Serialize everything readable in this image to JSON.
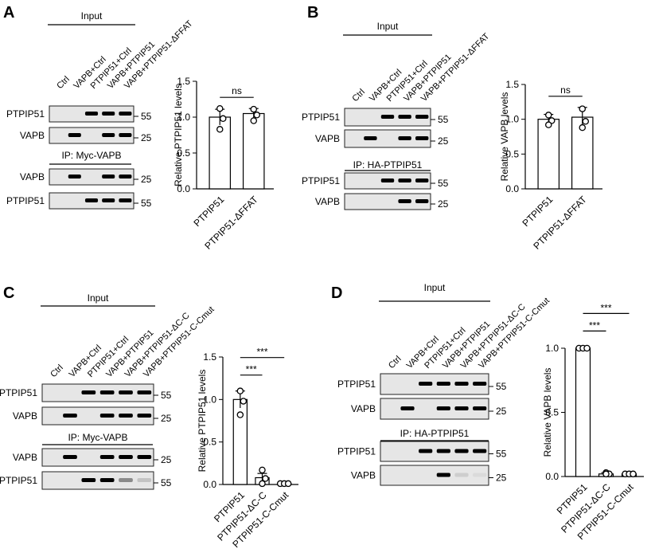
{
  "panels": [
    {
      "label": "A",
      "blot": {
        "input_label": "Input",
        "lanes": [
          "Ctrl",
          "VAPB+Ctrl",
          "PTPIP51+Ctrl",
          "VAPB+PTPIP51",
          "VAPB+PTPIP51-ΔFFAT"
        ],
        "ip_label": "IP: Myc-VAPB",
        "input_rows": [
          {
            "label": "PTPIP51",
            "mw": "55"
          },
          {
            "label": "VAPB",
            "mw": "25"
          }
        ],
        "ip_rows": [
          {
            "label": "VAPB",
            "mw": "25"
          },
          {
            "label": "PTPIP51",
            "mw": "55"
          }
        ]
      },
      "chart_data": {
        "type": "bar",
        "categories": [
          "PTPIP51",
          "PTPIP51-ΔFFAT"
        ],
        "values": [
          1.0,
          1.05
        ],
        "errors": [
          0.11,
          0.07
        ],
        "points": [
          [
            1.12,
            0.98,
            0.83
          ],
          [
            1.11,
            1.03,
            0.95
          ]
        ],
        "ylabel": "Relative PTPIP51 levels",
        "ylim": [
          0,
          1.5
        ],
        "yticks": [
          "0.0",
          "0.5",
          "1.0",
          "1.5"
        ],
        "significance": [
          "ns"
        ]
      }
    },
    {
      "label": "B",
      "blot": {
        "input_label": "Input",
        "lanes": [
          "Ctrl",
          "VAPB+Ctrl",
          "PTPIP51+Ctrl",
          "VAPB+PTPIP51",
          "VAPB+PTPIP51-ΔFFAT"
        ],
        "ip_label": "IP: HA-PTPIP51",
        "input_rows": [
          {
            "label": "PTPIP51",
            "mw": "55"
          },
          {
            "label": "VAPB",
            "mw": "25"
          }
        ],
        "ip_rows": [
          {
            "label": "PTPIP51",
            "mw": "55"
          },
          {
            "label": "VAPB",
            "mw": "25"
          }
        ]
      },
      "chart_data": {
        "type": "bar",
        "categories": [
          "PTPIP51",
          "PTPIP51-ΔFFAT"
        ],
        "values": [
          1.0,
          1.03
        ],
        "errors": [
          0.07,
          0.14
        ],
        "points": [
          [
            1.06,
            0.98,
            0.92
          ],
          [
            1.15,
            0.97,
            0.88
          ]
        ],
        "ylabel": "Relative VAPB levels",
        "ylim": [
          0,
          1.5
        ],
        "yticks": [
          "0.0",
          "0.5",
          "1.0",
          "1.5"
        ],
        "significance": [
          "ns"
        ]
      }
    },
    {
      "label": "C",
      "blot": {
        "input_label": "Input",
        "lanes": [
          "Ctrl",
          "VAPB+Ctrl",
          "PTPIP51+Ctrl",
          "VAPB+PTPIP51",
          "VAPB+PTPIP51-ΔC-C",
          "VAPB+PTPIP51-C-Cmut"
        ],
        "ip_label": "IP: Myc-VAPB",
        "input_rows": [
          {
            "label": "PTPIP51",
            "mw": "55"
          },
          {
            "label": "VAPB",
            "mw": "25"
          }
        ],
        "ip_rows": [
          {
            "label": "VAPB",
            "mw": "25"
          },
          {
            "label": "PTPIP51",
            "mw": "55"
          }
        ]
      },
      "chart_data": {
        "type": "bar",
        "categories": [
          "PTPIP51",
          "PTPIP51-ΔC-C",
          "PTPIP51-C-Cmut"
        ],
        "values": [
          1.0,
          0.08,
          0.01
        ],
        "errors": [
          0.1,
          0.05,
          0.005
        ],
        "points": [
          [
            1.1,
            0.98,
            0.82
          ],
          [
            0.17,
            0.07,
            0.01
          ],
          [
            0.01,
            0.01,
            0.01
          ]
        ],
        "ylabel": "Relative PTPIP51 levels",
        "ylim": [
          0,
          1.5
        ],
        "yticks": [
          "0.0",
          "0.5",
          "1.0",
          "1.5"
        ],
        "significance": [
          "***",
          "***"
        ]
      }
    },
    {
      "label": "D",
      "blot": {
        "input_label": "Input",
        "lanes": [
          "Ctrl",
          "VAPB+Ctrl",
          "PTPIP51+Ctrl",
          "VAPB+PTPIP51",
          "VAPB+PTPIP51-ΔC-C",
          "VAPB+PTPIP51-C-Cmut"
        ],
        "ip_label": "IP: HA-PTPIP51",
        "input_rows": [
          {
            "label": "PTPIP51",
            "mw": "55"
          },
          {
            "label": "VAPB",
            "mw": "25"
          }
        ],
        "ip_rows": [
          {
            "label": "PTPIP51",
            "mw": "55"
          },
          {
            "label": "VAPB",
            "mw": "25"
          }
        ]
      },
      "chart_data": {
        "type": "bar",
        "categories": [
          "PTPIP51",
          "PTPIP51-ΔC-C",
          "PTPIP51-C-Cmut"
        ],
        "values": [
          1.0,
          0.02,
          0.02
        ],
        "errors": [
          0.01,
          0.01,
          0.005
        ],
        "points": [
          [
            1.0,
            1.0,
            1.0
          ],
          [
            0.03,
            0.02,
            0.02
          ],
          [
            0.02,
            0.02,
            0.02
          ]
        ],
        "ylabel": "Relative VAPB levels",
        "ylim": [
          0,
          1.0
        ],
        "yticks": [
          "0.0",
          "0.5",
          "1.0"
        ],
        "significance": [
          "***",
          "***"
        ]
      }
    }
  ]
}
